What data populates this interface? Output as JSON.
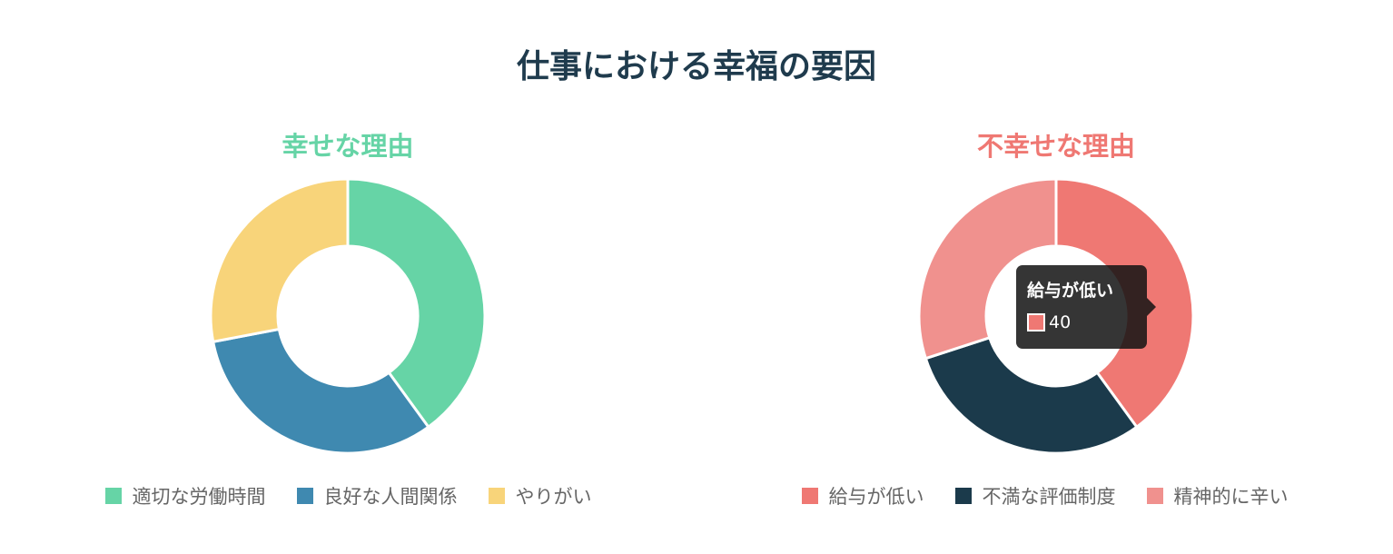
{
  "title": "仕事における幸福の要因",
  "chart_data": [
    {
      "type": "pie",
      "title": "幸せな理由",
      "title_color": "#66d4a6",
      "categories": [
        "適切な労働時間",
        "良好な人間関係",
        "やりがい"
      ],
      "values": [
        40,
        32,
        28
      ],
      "colors": [
        "#66d4a6",
        "#3f89b0",
        "#f8d47a"
      ],
      "legend_position": "bottom"
    },
    {
      "type": "pie",
      "title": "不幸せな理由",
      "title_color": "#ef7873",
      "categories": [
        "給与が低い",
        "不満な評価制度",
        "精神的に辛い"
      ],
      "values": [
        40,
        30,
        30
      ],
      "colors": [
        "#ef7873",
        "#1b3a4b",
        "#f0918e"
      ],
      "legend_position": "bottom"
    }
  ],
  "tooltip": {
    "label": "給与が低い",
    "value": "40",
    "color": "#ef7873"
  }
}
